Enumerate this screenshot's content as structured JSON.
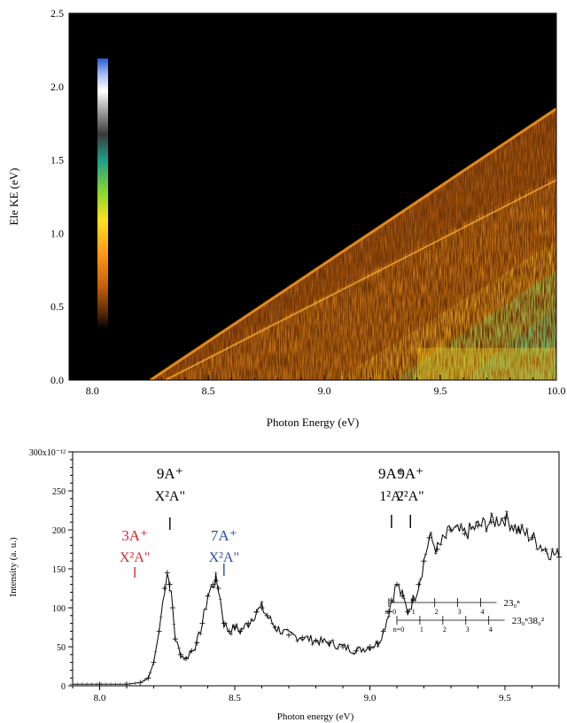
{
  "chart_data": [
    {
      "type": "heatmap",
      "xlabel": "Photon Energy (eV)",
      "ylabel": "Ele KE (eV)",
      "xlim": [
        7.9,
        10.0
      ],
      "ylim": [
        0.0,
        2.5
      ],
      "xticks": [
        "8.0",
        "8.5",
        "9.0",
        "9.5",
        "10.0"
      ],
      "yticks": [
        "0.0",
        "0.5",
        "1.0",
        "1.5",
        "2.0",
        "2.5"
      ],
      "colorscale": [
        "#000000",
        "#5a2a05",
        "#c8620c",
        "#ff9a1a",
        "#ffe01a",
        "#8fd92a",
        "#1fc09a",
        "#9a9a9a",
        "#ffffff",
        "#2a5ad8"
      ],
      "features": [
        {
          "kind": "onset_band",
          "onset_x": 8.25,
          "x_end": 10.0,
          "ke_end": 1.85
        },
        {
          "kind": "onset_band",
          "onset_x": 8.3,
          "x_end": 10.0,
          "ke_end": 1.4
        },
        {
          "kind": "onset_band",
          "onset_x": 9.05,
          "x_end": 10.0,
          "ke_end": 0.95
        }
      ]
    },
    {
      "type": "line",
      "xlabel": "Photon energy (eV)",
      "ylabel": "Intensity (a. u.)",
      "xlim": [
        7.9,
        9.7
      ],
      "ylim": [
        0,
        300
      ],
      "xticks": [
        "8.0",
        "8.5",
        "9.0",
        "9.5"
      ],
      "yticks": [
        "0",
        "50",
        "100",
        "150",
        "200",
        "250",
        "300x10⁻¹²"
      ],
      "series": [
        {
          "x": [
            7.9,
            8.0,
            8.1,
            8.15,
            8.18,
            8.2,
            8.22,
            8.24,
            8.25,
            8.26,
            8.27,
            8.28,
            8.3,
            8.32,
            8.34,
            8.36,
            8.38,
            8.4,
            8.42,
            8.43,
            8.44,
            8.46,
            8.48,
            8.5,
            8.52,
            8.55,
            8.58,
            8.6,
            8.62,
            8.65,
            8.7,
            8.75,
            8.8,
            8.85,
            8.9,
            8.95,
            9.0,
            9.03,
            9.05,
            9.07,
            9.08,
            9.1,
            9.12,
            9.14,
            9.16,
            9.18,
            9.2,
            9.22,
            9.25,
            9.3,
            9.35,
            9.4,
            9.45,
            9.5,
            9.55,
            9.6,
            9.65,
            9.7
          ],
          "y": [
            2,
            2,
            2,
            4,
            10,
            30,
            70,
            125,
            145,
            130,
            100,
            60,
            40,
            35,
            45,
            55,
            80,
            115,
            130,
            135,
            125,
            80,
            70,
            75,
            70,
            80,
            95,
            100,
            90,
            75,
            65,
            62,
            58,
            55,
            50,
            45,
            50,
            55,
            70,
            95,
            110,
            130,
            115,
            95,
            110,
            130,
            160,
            190,
            175,
            200,
            195,
            205,
            210,
            215,
            200,
            190,
            175,
            165
          ]
        }
      ],
      "annotations": [
        {
          "line1": "9A⁺",
          "line2": "X²A\"",
          "color": "#000000",
          "x": 8.26
        },
        {
          "line1": "3A⁺",
          "line2": "X²A\"",
          "color": "#d62728",
          "x": 8.13
        },
        {
          "line1": "7A⁺",
          "line2": "X²A\"",
          "color": "#2b4aa8",
          "x": 8.46
        },
        {
          "line1": "9A⁺",
          "line2": "1²A'",
          "color": "#000000",
          "x": 9.08
        },
        {
          "line1": "9A⁺",
          "line2": "2²A\"",
          "color": "#000000",
          "x": 9.15
        }
      ],
      "progressions": [
        {
          "label": "23₀ⁿ",
          "start_x": 9.07,
          "spacing": 0.085,
          "n": [
            "n=0",
            "1",
            "2",
            "3",
            "4"
          ]
        },
        {
          "label": "23₀ⁿ38₀²",
          "start_x": 9.1,
          "spacing": 0.085,
          "n": [
            "n=0",
            "1",
            "2",
            "3",
            "4"
          ]
        }
      ]
    }
  ]
}
